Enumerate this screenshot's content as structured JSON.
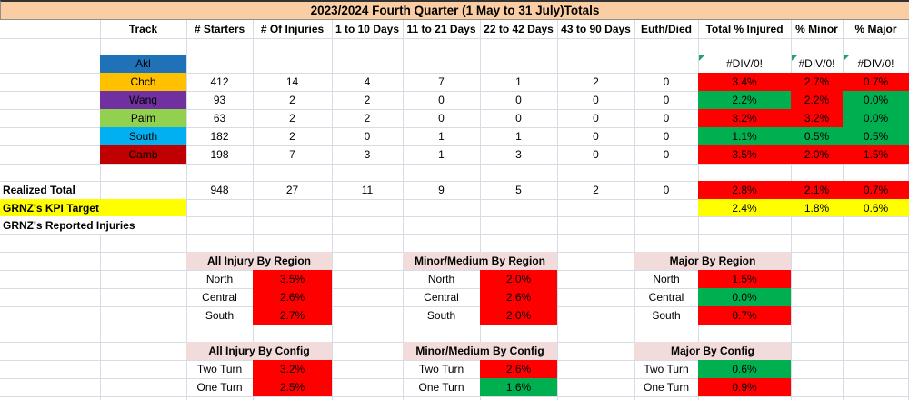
{
  "title": "2023/2024 Fourth Quarter (1 May to 31 July)Totals",
  "columns": [
    "Track",
    "# Starters",
    "# Of Injuries",
    "1 to 10 Days",
    "11 to 21 Days",
    "22 to 42 Days",
    "43 to 90 Days",
    "Euth/Died",
    "Total % Injured",
    "% Minor",
    "% Major"
  ],
  "tracks": [
    {
      "name": "Akl",
      "color": "#1F72B8",
      "values": [
        "",
        "",
        "",
        "",
        "",
        "",
        ""
      ],
      "pcts": [
        {
          "v": "#DIV/0!",
          "s": "error"
        },
        {
          "v": "#DIV/0!",
          "s": "error"
        },
        {
          "v": "#DIV/0!",
          "s": "error"
        }
      ]
    },
    {
      "name": "Chch",
      "color": "#FFC000",
      "values": [
        "412",
        "14",
        "4",
        "7",
        "1",
        "2",
        "0"
      ],
      "pcts": [
        {
          "v": "3.4%",
          "s": "bad"
        },
        {
          "v": "2.7%",
          "s": "bad"
        },
        {
          "v": "0.7%",
          "s": "bad"
        }
      ]
    },
    {
      "name": "Wang",
      "color": "#7030A0",
      "values": [
        "93",
        "2",
        "2",
        "0",
        "0",
        "0",
        "0"
      ],
      "pcts": [
        {
          "v": "2.2%",
          "s": "good"
        },
        {
          "v": "2.2%",
          "s": "bad"
        },
        {
          "v": "0.0%",
          "s": "good"
        }
      ]
    },
    {
      "name": "Palm",
      "color": "#92D050",
      "values": [
        "63",
        "2",
        "2",
        "0",
        "0",
        "0",
        "0"
      ],
      "pcts": [
        {
          "v": "3.2%",
          "s": "bad"
        },
        {
          "v": "3.2%",
          "s": "bad"
        },
        {
          "v": "0.0%",
          "s": "good"
        }
      ]
    },
    {
      "name": "South",
      "color": "#00B0F0",
      "values": [
        "182",
        "2",
        "0",
        "1",
        "1",
        "0",
        "0"
      ],
      "pcts": [
        {
          "v": "1.1%",
          "s": "good"
        },
        {
          "v": "0.5%",
          "s": "good"
        },
        {
          "v": "0.5%",
          "s": "good"
        }
      ]
    },
    {
      "name": "Camb",
      "color": "#C00000",
      "values": [
        "198",
        "7",
        "3",
        "1",
        "3",
        "0",
        "0"
      ],
      "pcts": [
        {
          "v": "3.5%",
          "s": "bad"
        },
        {
          "v": "2.0%",
          "s": "bad"
        },
        {
          "v": "1.5%",
          "s": "bad"
        }
      ]
    }
  ],
  "totals_row": {
    "label": "Realized Total",
    "values": [
      "948",
      "27",
      "11",
      "9",
      "5",
      "2",
      "0"
    ],
    "pcts": [
      {
        "v": "2.8%",
        "s": "bad"
      },
      {
        "v": "2.1%",
        "s": "bad"
      },
      {
        "v": "0.7%",
        "s": "bad"
      }
    ]
  },
  "kpi_row": {
    "label": "GRNZ's KPI Target",
    "s": "target",
    "pcts": [
      {
        "v": "2.4%",
        "s": "target"
      },
      {
        "v": "1.8%",
        "s": "target"
      },
      {
        "v": "0.6%",
        "s": "target"
      }
    ]
  },
  "reported_row": {
    "label": "GRNZ's Reported Injuries"
  },
  "region_tables": [
    {
      "title": "All Injury By Region",
      "rows": [
        {
          "label": "North",
          "v": "3.5%",
          "s": "bad"
        },
        {
          "label": "Central",
          "v": "2.6%",
          "s": "bad"
        },
        {
          "label": "South",
          "v": "2.7%",
          "s": "bad"
        }
      ]
    },
    {
      "title": "Minor/Medium By Region",
      "rows": [
        {
          "label": "North",
          "v": "2.0%",
          "s": "bad"
        },
        {
          "label": "Central",
          "v": "2.6%",
          "s": "bad"
        },
        {
          "label": "South",
          "v": "2.0%",
          "s": "bad"
        }
      ]
    },
    {
      "title": "Major By Region",
      "rows": [
        {
          "label": "North",
          "v": "1.5%",
          "s": "bad"
        },
        {
          "label": "Central",
          "v": "0.0%",
          "s": "good"
        },
        {
          "label": "South",
          "v": "0.7%",
          "s": "bad"
        }
      ]
    }
  ],
  "config_tables": [
    {
      "title": "All Injury By Config",
      "rows": [
        {
          "label": "Two Turn",
          "v": "3.2%",
          "s": "bad"
        },
        {
          "label": "One Turn",
          "v": "2.5%",
          "s": "bad"
        }
      ]
    },
    {
      "title": "Minor/Medium By Config",
      "rows": [
        {
          "label": "Two Turn",
          "v": "2.6%",
          "s": "bad"
        },
        {
          "label": "One Turn",
          "v": "1.6%",
          "s": "good"
        }
      ]
    },
    {
      "title": "Major By Config",
      "rows": [
        {
          "label": "Two Turn",
          "v": "0.6%",
          "s": "good"
        },
        {
          "label": "One Turn",
          "v": "0.9%",
          "s": "bad"
        }
      ]
    }
  ],
  "colors": {
    "bad": "#FF0000",
    "good": "#00B050",
    "target": "#FFFF00",
    "title_bg": "#FACDA2",
    "section_header_bg": "#F2DCDB",
    "error_flag": "#21A366"
  }
}
